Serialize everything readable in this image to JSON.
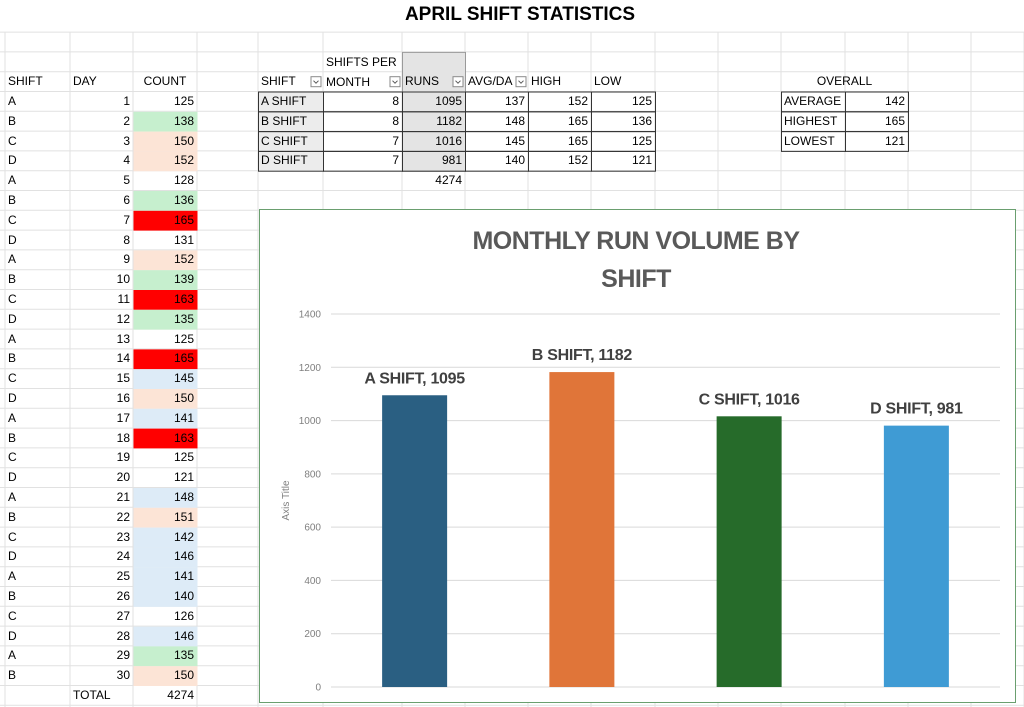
{
  "title": "APRIL SHIFT STATISTICS",
  "log": {
    "headers": [
      "SHIFT",
      "DAY",
      "COUNT"
    ],
    "rows": [
      {
        "shift": "A",
        "day": 1,
        "count": 125
      },
      {
        "shift": "B",
        "day": 2,
        "count": 138,
        "fill": "#c6efce"
      },
      {
        "shift": "C",
        "day": 3,
        "count": 150,
        "fill": "#fce4d6"
      },
      {
        "shift": "D",
        "day": 4,
        "count": 152,
        "fill": "#fce4d6"
      },
      {
        "shift": "A",
        "day": 5,
        "count": 128
      },
      {
        "shift": "B",
        "day": 6,
        "count": 136,
        "fill": "#c6efce"
      },
      {
        "shift": "C",
        "day": 7,
        "count": 165,
        "fill": "#ff0000"
      },
      {
        "shift": "D",
        "day": 8,
        "count": 131
      },
      {
        "shift": "A",
        "day": 9,
        "count": 152,
        "fill": "#fce4d6"
      },
      {
        "shift": "B",
        "day": 10,
        "count": 139,
        "fill": "#c6efce"
      },
      {
        "shift": "C",
        "day": 11,
        "count": 163,
        "fill": "#ff0000"
      },
      {
        "shift": "D",
        "day": 12,
        "count": 135,
        "fill": "#c6efce"
      },
      {
        "shift": "A",
        "day": 13,
        "count": 125
      },
      {
        "shift": "B",
        "day": 14,
        "count": 165,
        "fill": "#ff0000"
      },
      {
        "shift": "C",
        "day": 15,
        "count": 145,
        "fill": "#ddebf7"
      },
      {
        "shift": "D",
        "day": 16,
        "count": 150,
        "fill": "#fce4d6"
      },
      {
        "shift": "A",
        "day": 17,
        "count": 141,
        "fill": "#ddebf7"
      },
      {
        "shift": "B",
        "day": 18,
        "count": 163,
        "fill": "#ff0000"
      },
      {
        "shift": "C",
        "day": 19,
        "count": 125
      },
      {
        "shift": "D",
        "day": 20,
        "count": 121
      },
      {
        "shift": "A",
        "day": 21,
        "count": 148,
        "fill": "#ddebf7"
      },
      {
        "shift": "B",
        "day": 22,
        "count": 151,
        "fill": "#fce4d6"
      },
      {
        "shift": "C",
        "day": 23,
        "count": 142,
        "fill": "#ddebf7"
      },
      {
        "shift": "D",
        "day": 24,
        "count": 146,
        "fill": "#ddebf7"
      },
      {
        "shift": "A",
        "day": 25,
        "count": 141,
        "fill": "#ddebf7"
      },
      {
        "shift": "B",
        "day": 26,
        "count": 140,
        "fill": "#ddebf7"
      },
      {
        "shift": "C",
        "day": 27,
        "count": 126
      },
      {
        "shift": "D",
        "day": 28,
        "count": 146,
        "fill": "#ddebf7"
      },
      {
        "shift": "A",
        "day": 29,
        "count": 135,
        "fill": "#c6efce"
      },
      {
        "shift": "B",
        "day": 30,
        "count": 150,
        "fill": "#fce4d6"
      }
    ],
    "total_label": "TOTAL",
    "total": 4274
  },
  "summary": {
    "headers": [
      "SHIFT",
      "SHIFTS PER MONTH",
      "RUNS",
      "AVG/DA",
      "HIGH",
      "LOW"
    ],
    "rows": [
      [
        "A SHIFT",
        8,
        1095,
        137,
        152,
        125
      ],
      [
        "B SHIFT",
        8,
        1182,
        148,
        165,
        136
      ],
      [
        "C SHIFT",
        7,
        1016,
        145,
        165,
        125
      ],
      [
        "D SHIFT",
        7,
        981,
        140,
        152,
        121
      ]
    ],
    "runs_total": 4274
  },
  "overall": {
    "header": "OVERALL",
    "rows": [
      [
        "AVERAGE",
        142
      ],
      [
        "HIGHEST",
        165
      ],
      [
        "LOWEST",
        121
      ]
    ]
  },
  "chart_data": {
    "type": "bar",
    "title": "MONTHLY RUN VOLUME BY SHIFT",
    "y_axis_title": "Axis Title",
    "values": [
      1095,
      1182,
      1016,
      981
    ],
    "value_labels": [
      "A SHIFT, 1095",
      "B SHIFT, 1182",
      "C SHIFT, 1016",
      "D SHIFT, 981"
    ],
    "colors": [
      "#2a5f82",
      "#e07539",
      "#266b2a",
      "#3f9bd4"
    ],
    "ylim": [
      0,
      1400
    ],
    "yticks": [
      0,
      200,
      400,
      600,
      800,
      1000,
      1200,
      1400
    ],
    "grid": true
  }
}
